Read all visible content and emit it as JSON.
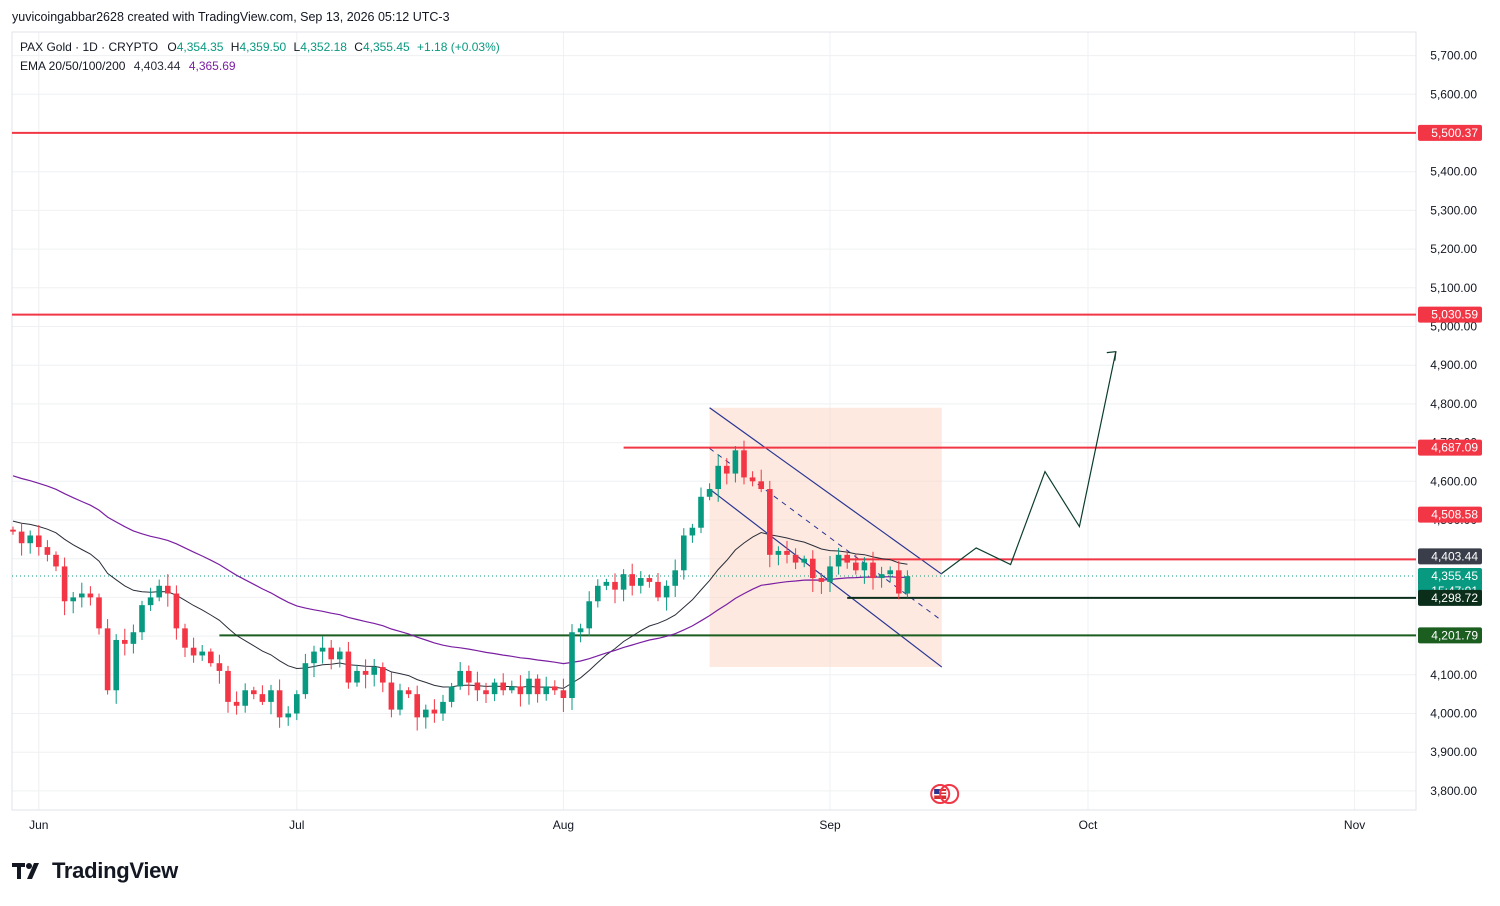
{
  "attribution": "yuvicoingabbar2628 created with TradingView.com, Sep 13, 2026 05:12 UTC-3",
  "header": {
    "symbol_line": "PAX Gold · 1D · CRYPTO",
    "o_label": "O",
    "o_value": "4,354.35",
    "h_label": "H",
    "h_value": "4,359.50",
    "l_label": "L",
    "l_value": "4,352.18",
    "c_label": "C",
    "c_value": "4,355.45",
    "change": "+1.18 (+0.03%)",
    "ema_label": "EMA 20/50/100/200",
    "ema_value_1": "4,403.44",
    "ema_value_2": "4,365.69"
  },
  "brand": "TradingView",
  "colors": {
    "up": "#089981",
    "down": "#f23645",
    "ema_fast": "#2a2e39",
    "ema_slow": "#7b1fa2",
    "resistance": "#f23645",
    "support": "#1b5e20",
    "channel": "#283593",
    "channel_fill": "#fbd7c7"
  },
  "chart_data": {
    "type": "candlestick",
    "symbol": "PAX Gold",
    "interval": "1D",
    "x_labels": [
      "Jun",
      "Jul",
      "Aug",
      "Sep",
      "Oct",
      "Nov"
    ],
    "y_ticks": [
      "3,800.00",
      "3,900.00",
      "4,000.00",
      "4,100.00",
      "4,200.00",
      "4,300.00",
      "4,400.00",
      "4,500.00",
      "4,600.00",
      "4,700.00",
      "4,800.00",
      "4,900.00",
      "5,000.00",
      "5,100.00",
      "5,200.00",
      "5,300.00",
      "5,400.00",
      "5,500.00",
      "5,600.00",
      "5,700.00"
    ],
    "ylim": [
      3775,
      5735
    ],
    "date_start": "2026-05-29",
    "closes": [
      4470,
      4440,
      4460,
      4430,
      4410,
      4380,
      4290,
      4300,
      4310,
      4300,
      4220,
      4060,
      4190,
      4180,
      4210,
      4280,
      4300,
      4330,
      4310,
      4220,
      4170,
      4150,
      4160,
      4130,
      4110,
      4030,
      4020,
      4060,
      4050,
      4030,
      4060,
      3990,
      4000,
      4050,
      4130,
      4160,
      4170,
      4140,
      4160,
      4080,
      4110,
      4100,
      4120,
      4080,
      4010,
      4060,
      4050,
      3990,
      4010,
      4000,
      4030,
      4070,
      4110,
      4080,
      4060,
      4050,
      4080,
      4060,
      4070,
      4050,
      4090,
      4050,
      4070,
      4060,
      4040,
      4210,
      4220,
      4290,
      4330,
      4340,
      4320,
      4360,
      4330,
      4350,
      4340,
      4300,
      4330,
      4370,
      4460,
      4480,
      4560,
      4580,
      4640,
      4620,
      4680,
      4610,
      4600,
      4580,
      4410,
      4420,
      4410,
      4390,
      4400,
      4350,
      4340,
      4380,
      4410,
      4390,
      4370,
      4390,
      4350,
      4360,
      4370,
      4310,
      4355
    ],
    "ema_values": [
      {
        "name": "EMA 20",
        "value": 4403.44
      },
      {
        "name": "EMA 50",
        "value": 4365.69
      }
    ],
    "levels": [
      {
        "label": "5,500.37",
        "value": 5500.37,
        "kind": "resistance"
      },
      {
        "label": "5,030.59",
        "value": 5030.59,
        "kind": "resistance"
      },
      {
        "label": "4,687.09",
        "value": 4687.09,
        "kind": "resistance"
      },
      {
        "label": "4,508.58",
        "value": 4508.58,
        "kind": "marker-red"
      },
      {
        "label": "4,403.44",
        "value": 4403.44,
        "kind": "ema-fast"
      },
      {
        "label": "4,397.85",
        "value": 4397.85,
        "kind": "marker-red"
      },
      {
        "label": "4,365.69",
        "value": 4365.69,
        "kind": "ema-slow"
      },
      {
        "label": "4,355.45",
        "value": 4355.45,
        "kind": "last-price"
      },
      {
        "label": "15:47:01",
        "kind": "countdown"
      },
      {
        "label": "4,298.72",
        "value": 4298.72,
        "kind": "support-black"
      },
      {
        "label": "4,201.79",
        "value": 4201.79,
        "kind": "support"
      }
    ],
    "drawings": {
      "descending_channel": {
        "from": "2026-08-18",
        "to": "2026-09-14",
        "upper": [
          4790,
          4360
        ],
        "lower": [
          4580,
          4120
        ]
      },
      "projection_path": [
        4362,
        4428,
        4385,
        4625,
        4483,
        4935
      ]
    },
    "grid": true
  }
}
